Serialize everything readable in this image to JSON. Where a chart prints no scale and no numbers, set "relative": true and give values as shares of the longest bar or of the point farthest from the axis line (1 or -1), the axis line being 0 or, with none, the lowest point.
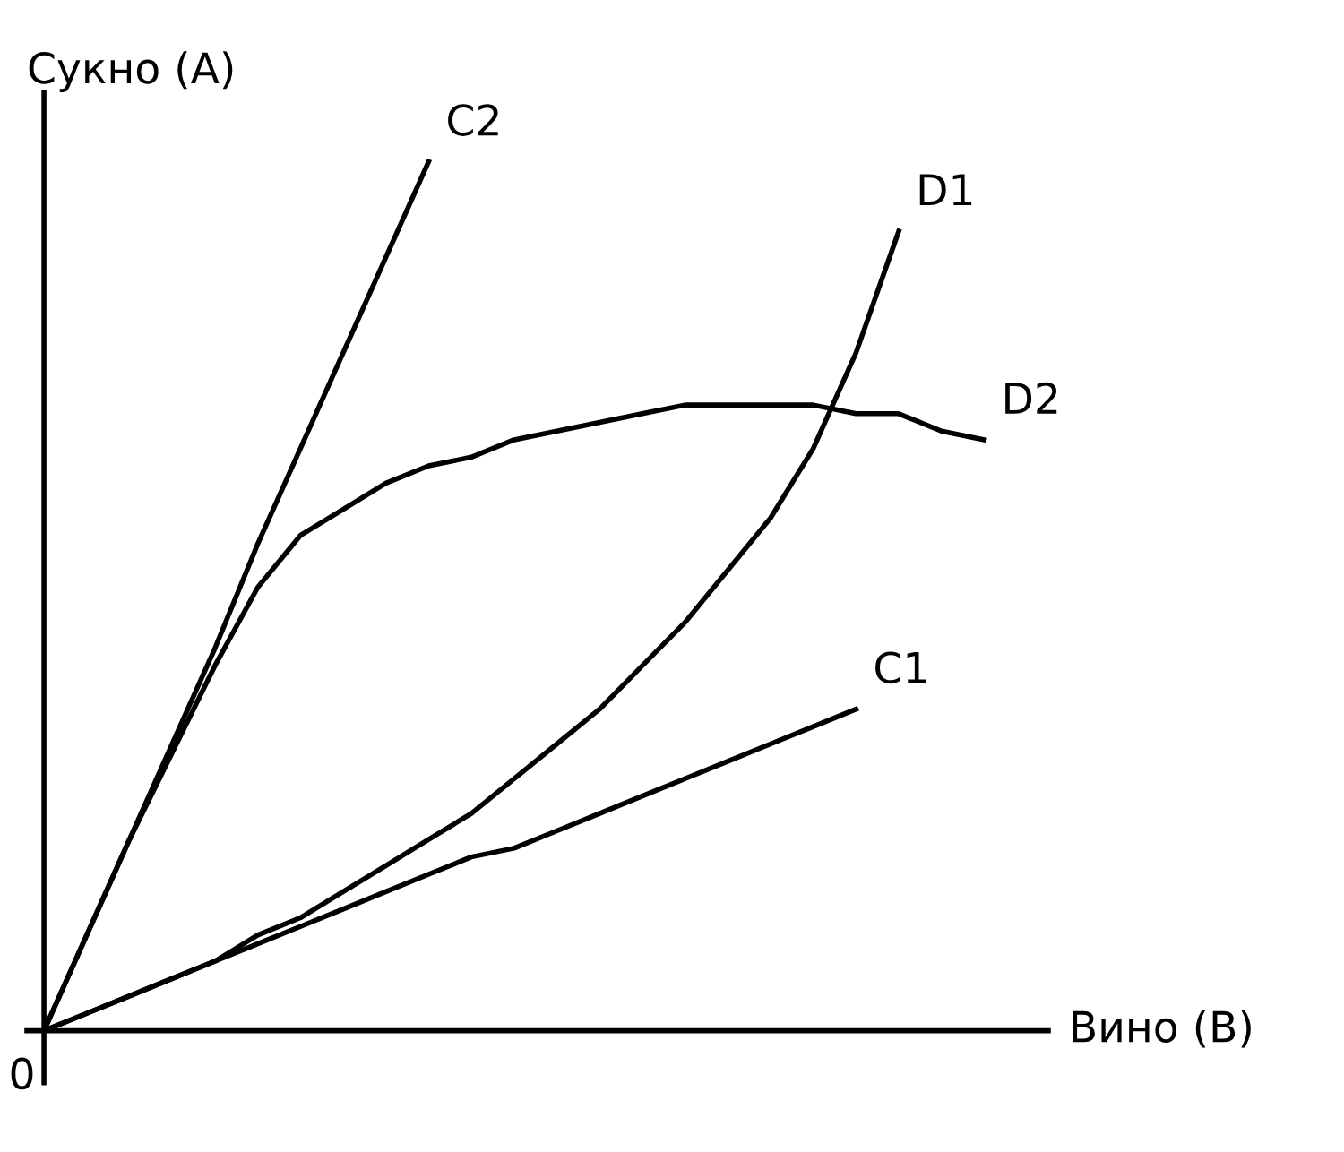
{
  "chart_data": {
    "type": "line",
    "relative": true,
    "xlabel": "Вино (B)",
    "ylabel": "Сукно (A)",
    "annotations": [
      "0"
    ],
    "legend": false,
    "marker": "none",
    "line_style": "solid",
    "categories": [
      null,
      null,
      null,
      null,
      null,
      null,
      null,
      null,
      null,
      null,
      null,
      null,
      null,
      null,
      null,
      null,
      null,
      null,
      null,
      null,
      null,
      null,
      null
    ],
    "series": [
      {
        "name": "C2",
        "color": "#000000",
        "values": [
          0,
          0.11,
          0.22,
          0.33,
          0.44,
          0.56,
          0.67,
          0.78,
          0.89,
          1.0,
          null,
          null,
          null,
          null,
          null,
          null,
          null,
          null,
          null,
          null,
          null,
          null,
          null
        ]
      },
      {
        "name": "D1",
        "color": "#000000",
        "values": [
          0,
          0.02,
          0.04,
          0.06,
          0.08,
          0.11,
          0.13,
          0.16,
          0.19,
          0.22,
          0.25,
          0.29,
          0.33,
          0.37,
          0.42,
          0.47,
          0.53,
          0.59,
          0.67,
          0.78,
          0.92,
          null,
          null
        ]
      },
      {
        "name": "D2",
        "color": "#000000",
        "values": [
          0,
          0.11,
          0.22,
          0.32,
          0.42,
          0.51,
          0.57,
          0.6,
          0.63,
          0.65,
          0.66,
          0.68,
          0.69,
          0.7,
          0.71,
          0.72,
          0.72,
          0.72,
          0.72,
          0.71,
          0.71,
          0.69,
          0.68
        ]
      },
      {
        "name": "C1",
        "color": "#000000",
        "values": [
          0,
          0.02,
          0.04,
          0.06,
          0.08,
          0.1,
          0.12,
          0.14,
          0.16,
          0.18,
          0.2,
          0.21,
          0.23,
          0.25,
          0.27,
          0.29,
          0.31,
          0.33,
          0.35,
          0.37,
          null,
          null,
          null
        ]
      }
    ]
  }
}
